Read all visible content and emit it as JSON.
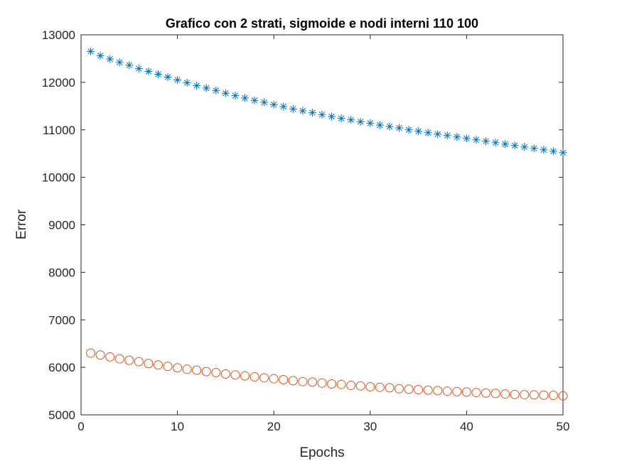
{
  "chart_data": {
    "type": "scatter",
    "title": "Grafico con 2 strati, sigmoide e nodi interni 110  100",
    "xlabel": "Epochs",
    "ylabel": "Error",
    "xlim": [
      0,
      50
    ],
    "ylim": [
      5000,
      13000
    ],
    "xticks": [
      0,
      10,
      20,
      30,
      40,
      50
    ],
    "yticks": [
      5000,
      6000,
      7000,
      8000,
      9000,
      10000,
      11000,
      12000,
      13000
    ],
    "grid": false,
    "legend": "none",
    "x": [
      1,
      2,
      3,
      4,
      5,
      6,
      7,
      8,
      9,
      10,
      11,
      12,
      13,
      14,
      15,
      16,
      17,
      18,
      19,
      20,
      21,
      22,
      23,
      24,
      25,
      26,
      27,
      28,
      29,
      30,
      31,
      32,
      33,
      34,
      35,
      36,
      37,
      38,
      39,
      40,
      41,
      42,
      43,
      44,
      45,
      46,
      47,
      48,
      49,
      50
    ],
    "series": [
      {
        "marker": "asterisk",
        "color": "#0072BD",
        "values": [
          12650,
          12560,
          12490,
          12420,
          12360,
          12290,
          12230,
          12170,
          12110,
          12050,
          11990,
          11930,
          11880,
          11830,
          11770,
          11720,
          11670,
          11620,
          11580,
          11530,
          11490,
          11440,
          11400,
          11360,
          11320,
          11280,
          11240,
          11210,
          11170,
          11140,
          11100,
          11070,
          11040,
          11000,
          10970,
          10940,
          10910,
          10880,
          10850,
          10820,
          10790,
          10760,
          10730,
          10700,
          10670,
          10640,
          10610,
          10580,
          10550,
          10520
        ]
      },
      {
        "marker": "circle",
        "color": "#D95319",
        "values": [
          6300,
          6260,
          6220,
          6180,
          6150,
          6120,
          6080,
          6050,
          6020,
          5990,
          5960,
          5940,
          5910,
          5890,
          5860,
          5840,
          5820,
          5800,
          5780,
          5760,
          5740,
          5720,
          5700,
          5690,
          5670,
          5650,
          5640,
          5620,
          5610,
          5590,
          5580,
          5570,
          5550,
          5540,
          5530,
          5520,
          5510,
          5500,
          5490,
          5480,
          5470,
          5460,
          5450,
          5440,
          5430,
          5425,
          5420,
          5415,
          5410,
          5400
        ]
      }
    ]
  }
}
